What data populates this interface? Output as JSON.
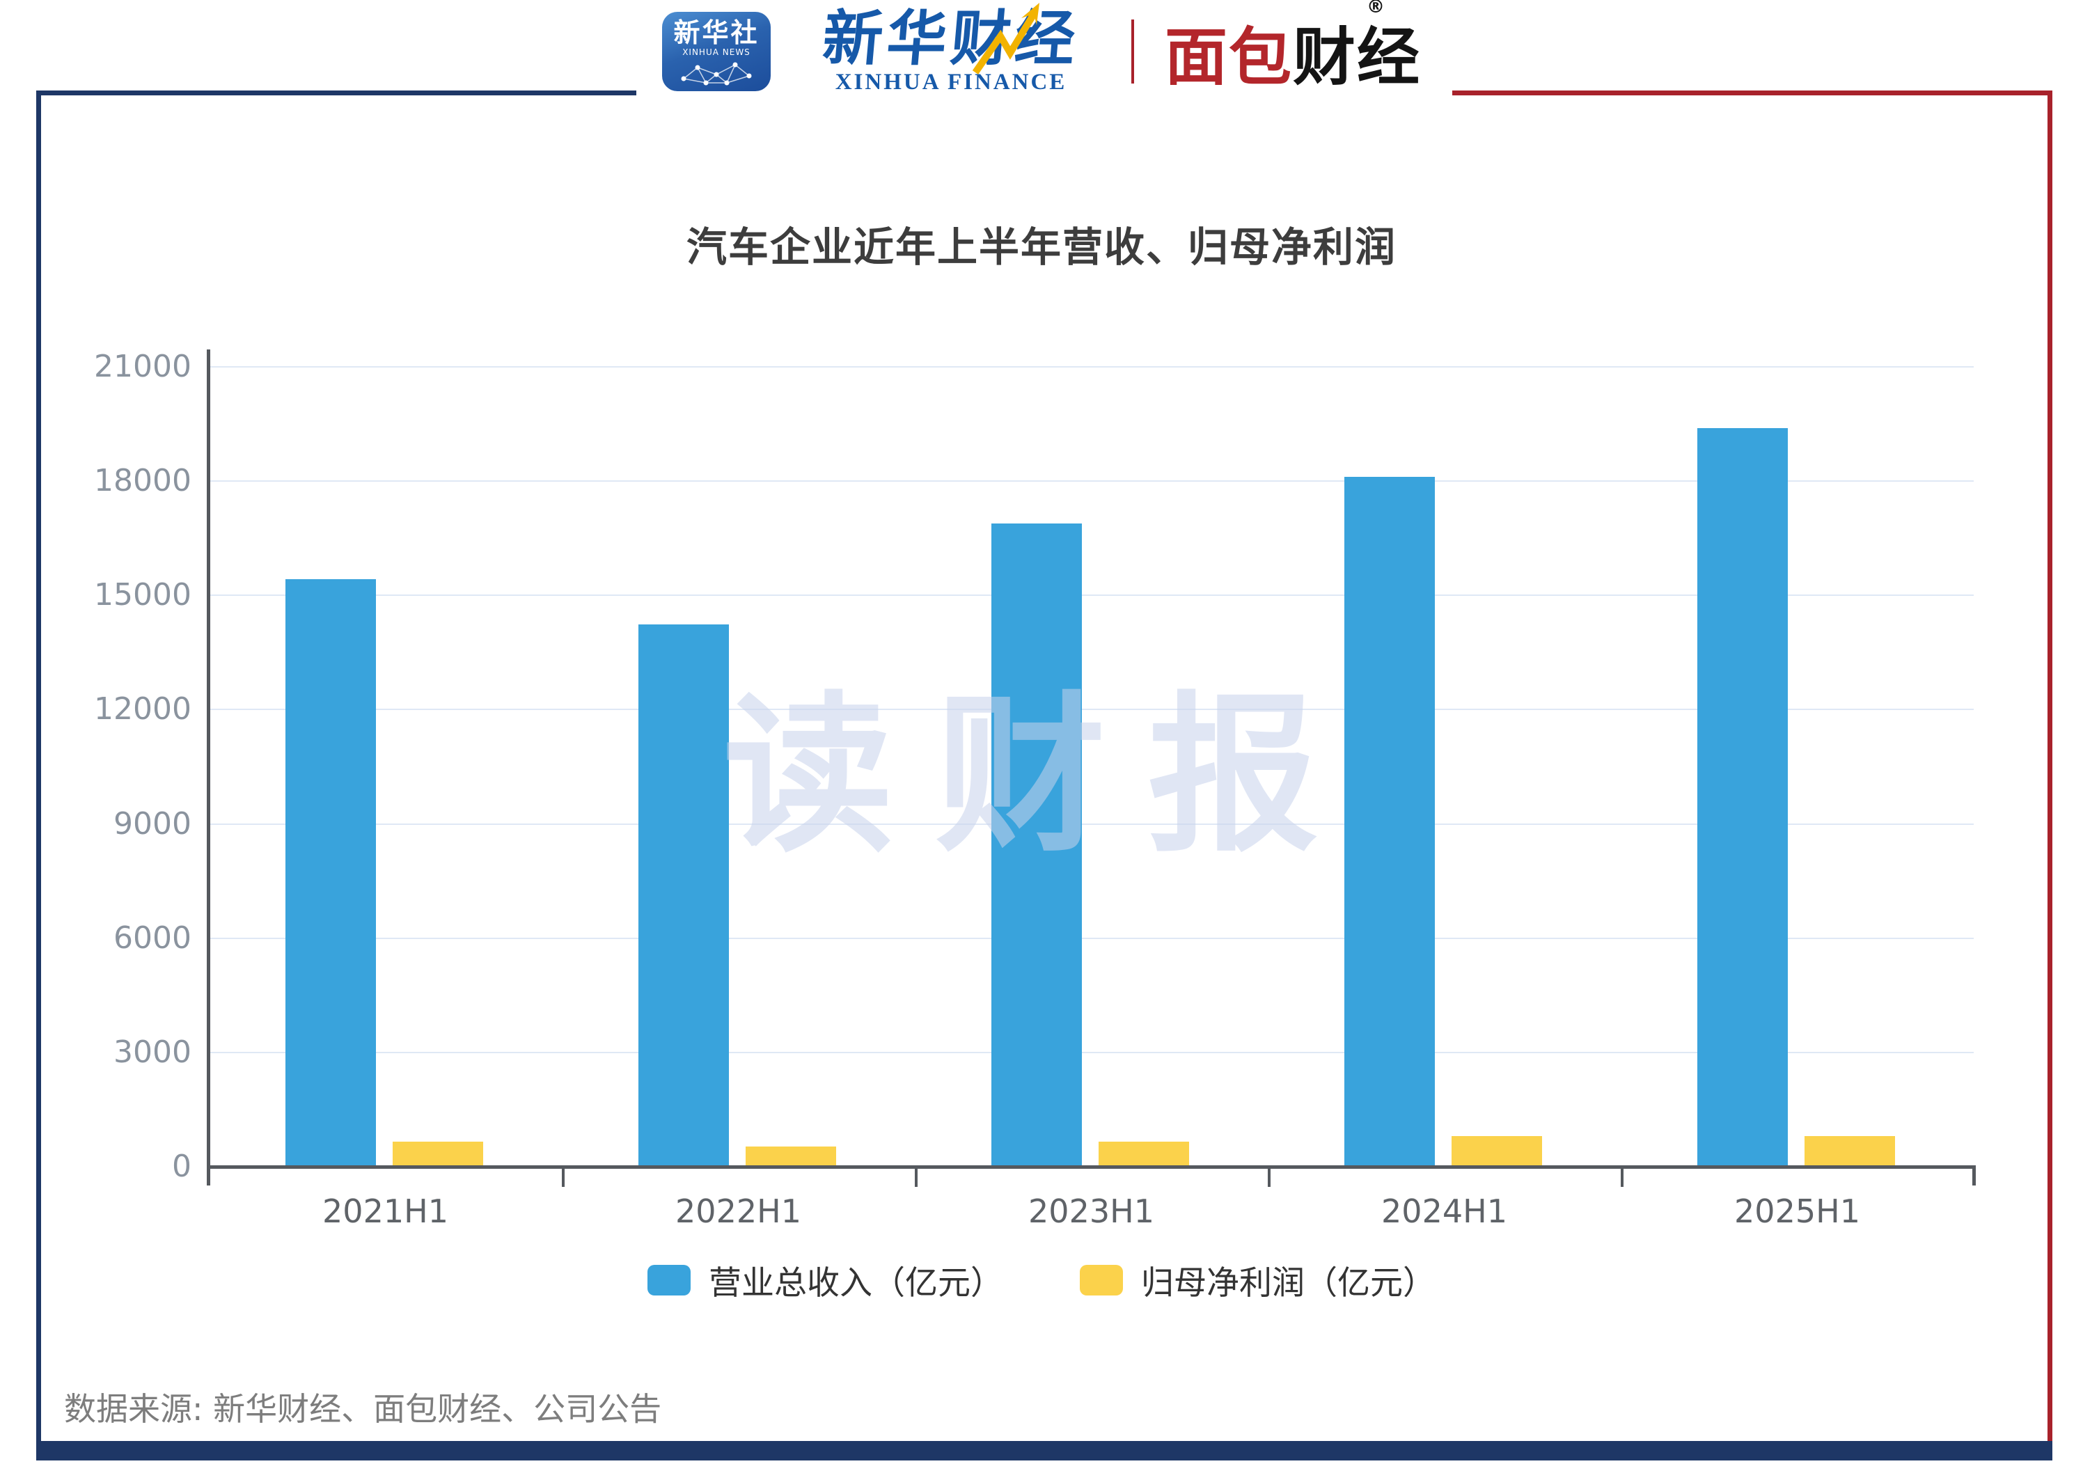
{
  "header": {
    "xinhua_news_icon": {
      "cn": "新华社",
      "en": "XINHUA NEWS"
    },
    "xinhua_finance": {
      "cn": "新华财经",
      "en": "XINHUA FINANCE"
    },
    "mianbao_finance": {
      "cn_red": "面包",
      "cn_black": "财经",
      "registered_mark": "®"
    }
  },
  "title": "汽车企业近年上半年营收、归母净利润",
  "watermark": "读财报",
  "chart_data": {
    "type": "bar",
    "categories": [
      "2021H1",
      "2022H1",
      "2023H1",
      "2024H1",
      "2025H1"
    ],
    "series": [
      {
        "name": "营业总收入（亿元）",
        "color": "#39A3DC",
        "values": [
          15420,
          14230,
          16880,
          18110,
          19390
        ]
      },
      {
        "name": "归母净利润（亿元）",
        "color": "#FBD24B",
        "values": [
          660,
          530,
          660,
          800,
          800
        ]
      }
    ],
    "title": "汽车企业近年上半年营收、归母净利润",
    "xlabel": "",
    "ylabel": "",
    "ylim": [
      0,
      21000
    ],
    "yticks": [
      21000,
      18000,
      15000,
      12000,
      9000,
      6000,
      3000,
      0
    ],
    "grid": true,
    "legend_position": "bottom"
  },
  "footer": {
    "source": "数据来源: 新华财经、面包财经、公司公告"
  },
  "colors": {
    "frame_navy": "#1e3766",
    "frame_red": "#a8222b",
    "bar_blue": "#39A3DC",
    "bar_yellow": "#FBD24B",
    "gridline": "#dfe8f5",
    "axis": "#55595e",
    "watermark": "#c8d3ec"
  }
}
